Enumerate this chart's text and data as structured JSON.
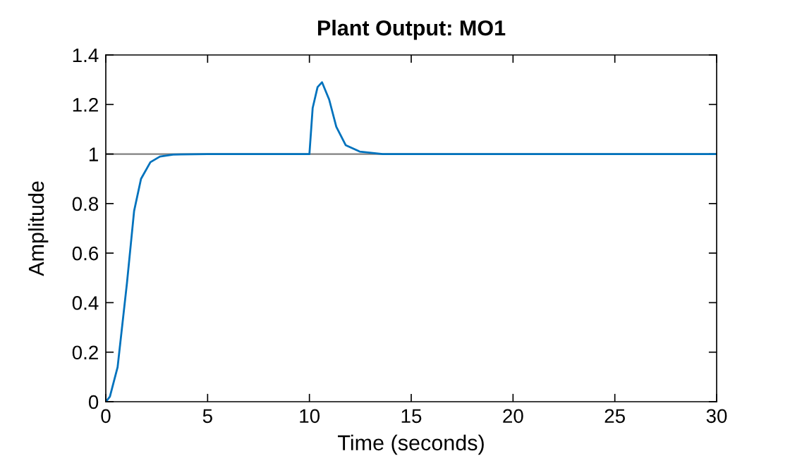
{
  "chart_data": {
    "type": "line",
    "title": "Plant Output: MO1",
    "xlabel": "Time (seconds)",
    "ylabel": "Amplitude",
    "series": [
      {
        "color": "#0072bd",
        "x": [
          0,
          0.2,
          0.58,
          1.04,
          1.39,
          1.73,
          2.19,
          2.66,
          3.3,
          5,
          10,
          10.16,
          10.4,
          10.62,
          10.97,
          11.32,
          11.78,
          12.47,
          13.6,
          15,
          30
        ],
        "values": [
          0,
          0.02,
          0.14,
          0.48,
          0.77,
          0.9,
          0.967,
          0.99,
          0.998,
          1,
          1,
          1.186,
          1.27,
          1.29,
          1.22,
          1.11,
          1.036,
          1.01,
          1.0,
          1,
          1
        ]
      }
    ],
    "ref_lines": [
      {
        "axis": "y",
        "value": 1,
        "color": "#808080"
      }
    ],
    "xlim": [
      0,
      30
    ],
    "xticks": [
      0,
      5,
      10,
      15,
      20,
      25,
      30
    ],
    "ylim": [
      0,
      1.4
    ],
    "yticks": [
      0,
      0.2,
      0.4,
      0.6,
      0.8,
      1,
      1.2,
      1.4
    ],
    "grid": false,
    "legend": false,
    "marker": "none",
    "line_style": "solid"
  }
}
